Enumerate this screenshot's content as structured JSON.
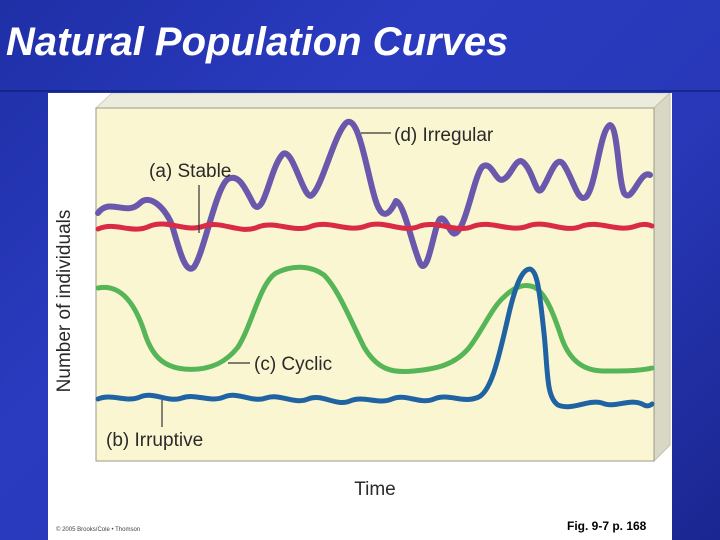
{
  "slide": {
    "title": "Natural Population Curves",
    "credit": "© 2005 Brooks/Cole • Thomson",
    "figure_ref": "Fig. 9-7 p. 168"
  },
  "chart_data": {
    "type": "line",
    "title": "",
    "xlabel": "Time",
    "ylabel": "Number of individuals",
    "grid": false,
    "legend": "inline labels",
    "series": [
      {
        "name": "(d) Irregular",
        "color": "#6a58ad"
      },
      {
        "name": "(a) Stable",
        "color": "#d92b45"
      },
      {
        "name": "(c) Cyclic",
        "color": "#56b556"
      },
      {
        "name": "(b) Irruptive",
        "color": "#1f63a3"
      }
    ]
  }
}
